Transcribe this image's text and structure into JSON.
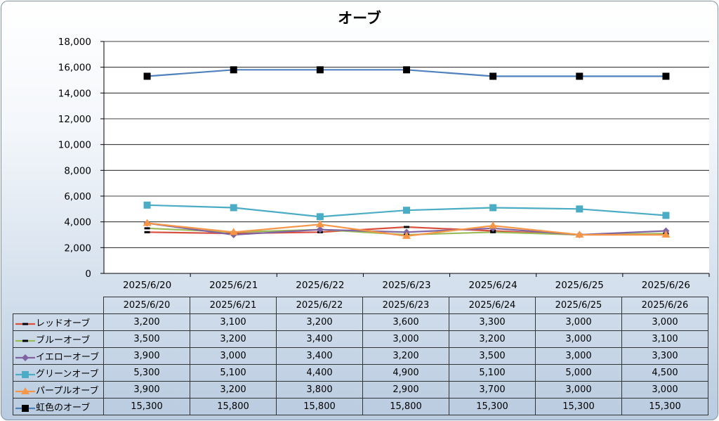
{
  "chart_data": {
    "type": "line",
    "title": "オーブ",
    "categories": [
      "2025/6/20",
      "2025/6/21",
      "2025/6/22",
      "2025/6/23",
      "2025/6/24",
      "2025/6/25",
      "2025/6/26"
    ],
    "ylim": [
      0,
      18000
    ],
    "yticks": [
      "0",
      "2,000",
      "4,000",
      "6,000",
      "8,000",
      "10,000",
      "12,000",
      "14,000",
      "16,000",
      "18,000"
    ],
    "grid": true,
    "legend": "data-table",
    "series": [
      {
        "name": "レッドオーブ",
        "color": "#d94f3d",
        "marker": "dash",
        "values": [
          3200,
          3100,
          3200,
          3600,
          3300,
          3000,
          3000
        ],
        "labels": [
          "3,200",
          "3,100",
          "3,200",
          "3,600",
          "3,300",
          "3,000",
          "3,000"
        ]
      },
      {
        "name": "ブルーオーブ",
        "color": "#9bbb59",
        "marker": "dash",
        "values": [
          3500,
          3200,
          3400,
          3000,
          3200,
          3000,
          3100
        ],
        "labels": [
          "3,500",
          "3,200",
          "3,400",
          "3,000",
          "3,200",
          "3,000",
          "3,100"
        ]
      },
      {
        "name": "イエローオーブ",
        "color": "#8064a2",
        "marker": "diamond",
        "values": [
          3900,
          3000,
          3400,
          3200,
          3500,
          3000,
          3300
        ],
        "labels": [
          "3,900",
          "3,000",
          "3,400",
          "3,200",
          "3,500",
          "3,000",
          "3,300"
        ]
      },
      {
        "name": "グリーンオーブ",
        "color": "#4bacc6",
        "marker": "square",
        "values": [
          5300,
          5100,
          4400,
          4900,
          5100,
          5000,
          4500
        ],
        "labels": [
          "5,300",
          "5,100",
          "4,400",
          "4,900",
          "5,100",
          "5,000",
          "4,500"
        ]
      },
      {
        "name": "パープルオーブ",
        "color": "#f79646",
        "marker": "triangle",
        "values": [
          3900,
          3200,
          3800,
          2900,
          3700,
          3000,
          3000
        ],
        "labels": [
          "3,900",
          "3,200",
          "3,800",
          "2,900",
          "3,700",
          "3,000",
          "3,000"
        ]
      },
      {
        "name": "虹色のオーブ",
        "color": "#4f81bd",
        "marker": "black-square",
        "values": [
          15300,
          15800,
          15800,
          15800,
          15300,
          15300,
          15300
        ],
        "labels": [
          "15,300",
          "15,800",
          "15,800",
          "15,800",
          "15,300",
          "15,300",
          "15,300"
        ]
      }
    ]
  }
}
